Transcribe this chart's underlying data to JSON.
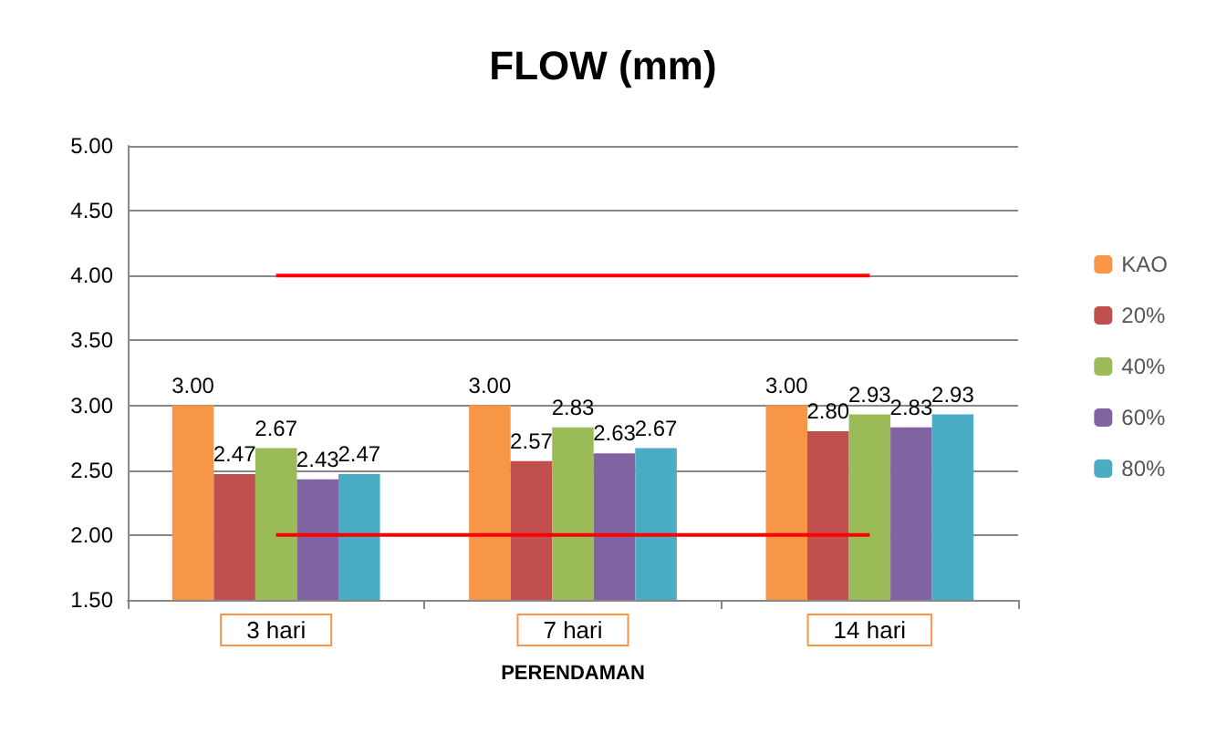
{
  "chart_data": {
    "type": "bar",
    "title": "FLOW (mm)",
    "xlabel": "PERENDAMAN",
    "categories": [
      "3 hari",
      "7 hari",
      "14 hari"
    ],
    "series": [
      {
        "name": "KAO",
        "color": "#f79646",
        "values": [
          3.0,
          3.0,
          3.0
        ],
        "value_labels": [
          "3.00",
          "3.00",
          "3.00"
        ]
      },
      {
        "name": "20%",
        "color": "#c0504d",
        "values": [
          2.47,
          2.57,
          2.8
        ],
        "value_labels": [
          "2.47",
          "2.57",
          "2.80"
        ]
      },
      {
        "name": "40%",
        "color": "#9bbb59",
        "values": [
          2.67,
          2.83,
          2.93
        ],
        "value_labels": [
          "2.67",
          "2.83",
          "2.93"
        ]
      },
      {
        "name": "60%",
        "color": "#8064a2",
        "values": [
          2.43,
          2.63,
          2.83
        ],
        "value_labels": [
          "2.43",
          "2.63",
          "2.83"
        ]
      },
      {
        "name": "80%",
        "color": "#4bacc6",
        "values": [
          2.47,
          2.67,
          2.93
        ],
        "value_labels": [
          "2.47",
          "2.67",
          "2.93"
        ]
      }
    ],
    "ylim": [
      1.5,
      5
    ],
    "yticks": [
      {
        "value": 1.5,
        "label": "1.50"
      },
      {
        "value": 2,
        "label": "2.00"
      },
      {
        "value": 2.5,
        "label": "2.50"
      },
      {
        "value": 3,
        "label": "3.00"
      },
      {
        "value": 3.5,
        "label": "3.50"
      },
      {
        "value": 4,
        "label": "4.00"
      },
      {
        "value": 4.5,
        "label": "4.50"
      },
      {
        "value": 5,
        "label": "5.00"
      }
    ],
    "ref_lines": [
      {
        "axis": "y",
        "value": 4,
        "color": "#ff0000"
      },
      {
        "axis": "y",
        "value": 2,
        "color": "#ff0000"
      }
    ],
    "grid": "y",
    "legend": "right"
  }
}
